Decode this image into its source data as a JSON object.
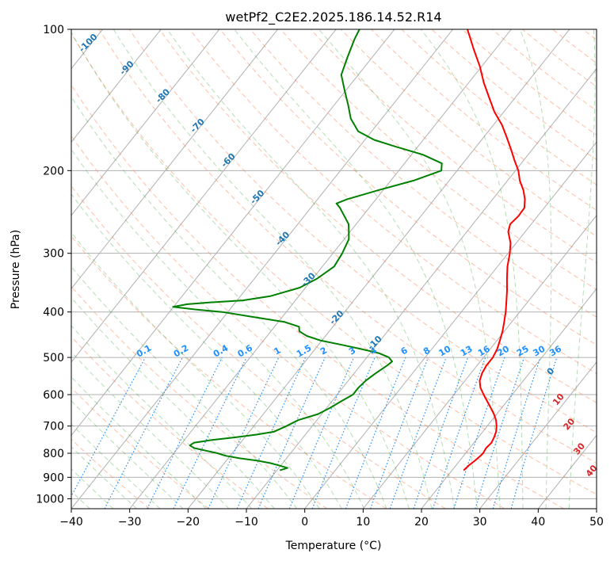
{
  "chart_data": {
    "type": "skew-t log-p",
    "title": "wetPf2_C2E2.2025.186.14.52.R14",
    "xlabel": "Temperature (°C)",
    "ylabel": "Pressure (hPa)",
    "xlim": [
      -40,
      50
    ],
    "ylim": [
      1050,
      100
    ],
    "x_ticks": [
      "−40",
      "−30",
      "−20",
      "−10",
      "0",
      "10",
      "20",
      "30",
      "40",
      "50"
    ],
    "y_ticks": [
      "100",
      "200",
      "300",
      "400",
      "500",
      "600",
      "700",
      "800",
      "900",
      "1000"
    ],
    "y_tick_values": [
      100,
      200,
      300,
      400,
      500,
      600,
      700,
      800,
      900,
      1000
    ],
    "grid": true,
    "series": [
      {
        "color": "#ff0000",
        "points": [
          [
            870,
            22.0
          ],
          [
            850,
            22.2
          ],
          [
            830,
            22.6
          ],
          [
            810,
            22.9
          ],
          [
            800,
            23.0
          ],
          [
            780,
            22.8
          ],
          [
            760,
            23.0
          ],
          [
            740,
            22.7
          ],
          [
            720,
            22.3
          ],
          [
            700,
            21.6
          ],
          [
            680,
            20.7
          ],
          [
            660,
            19.5
          ],
          [
            640,
            18.1
          ],
          [
            620,
            16.6
          ],
          [
            600,
            15.1
          ],
          [
            580,
            13.6
          ],
          [
            560,
            12.5
          ],
          [
            540,
            11.9
          ],
          [
            520,
            11.6
          ],
          [
            500,
            11.6
          ],
          [
            480,
            11.2
          ],
          [
            460,
            10.5
          ],
          [
            440,
            9.7
          ],
          [
            420,
            8.7
          ],
          [
            400,
            7.6
          ],
          [
            380,
            6.3
          ],
          [
            360,
            4.9
          ],
          [
            340,
            3.3
          ],
          [
            320,
            1.7
          ],
          [
            300,
            0.3
          ],
          [
            285,
            -1.0
          ],
          [
            270,
            -2.9
          ],
          [
            260,
            -3.6
          ],
          [
            250,
            -3.3
          ],
          [
            240,
            -3.4
          ],
          [
            230,
            -4.5
          ],
          [
            220,
            -6.0
          ],
          [
            210,
            -7.9
          ],
          [
            200,
            -9.5
          ],
          [
            190,
            -11.6
          ],
          [
            180,
            -13.7
          ],
          [
            170,
            -16.0
          ],
          [
            160,
            -18.5
          ],
          [
            150,
            -21.6
          ],
          [
            140,
            -24.4
          ],
          [
            130,
            -27.4
          ],
          [
            120,
            -30.3
          ],
          [
            110,
            -33.8
          ],
          [
            100,
            -37.5
          ]
        ]
      },
      {
        "color": "#008000",
        "points": [
          [
            870,
            -9.5
          ],
          [
            860,
            -8.5
          ],
          [
            850,
            -10.2
          ],
          [
            840,
            -12.0
          ],
          [
            830,
            -14.5
          ],
          [
            820,
            -18.0
          ],
          [
            810,
            -20.8
          ],
          [
            800,
            -22.5
          ],
          [
            790,
            -24.8
          ],
          [
            780,
            -27.2
          ],
          [
            770,
            -28.3
          ],
          [
            760,
            -28.0
          ],
          [
            750,
            -25.4
          ],
          [
            740,
            -21.7
          ],
          [
            730,
            -18.4
          ],
          [
            720,
            -15.8
          ],
          [
            700,
            -14.4
          ],
          [
            680,
            -13.2
          ],
          [
            660,
            -10.6
          ],
          [
            640,
            -9.4
          ],
          [
            620,
            -8.4
          ],
          [
            600,
            -7.3
          ],
          [
            580,
            -7.3
          ],
          [
            560,
            -7.0
          ],
          [
            540,
            -6.3
          ],
          [
            520,
            -5.4
          ],
          [
            510,
            -5.1
          ],
          [
            500,
            -6.2
          ],
          [
            490,
            -8.4
          ],
          [
            480,
            -12.0
          ],
          [
            470,
            -16.0
          ],
          [
            460,
            -20.3
          ],
          [
            450,
            -23.2
          ],
          [
            440,
            -25.1
          ],
          [
            430,
            -25.8
          ],
          [
            420,
            -29.0
          ],
          [
            410,
            -35.0
          ],
          [
            400,
            -41.0
          ],
          [
            395,
            -46.0
          ],
          [
            390,
            -50.1
          ],
          [
            385,
            -48.0
          ],
          [
            382,
            -44.5
          ],
          [
            378,
            -39.0
          ],
          [
            370,
            -34.8
          ],
          [
            355,
            -31.0
          ],
          [
            340,
            -29.3
          ],
          [
            320,
            -28.0
          ],
          [
            300,
            -28.4
          ],
          [
            280,
            -29.2
          ],
          [
            270,
            -30.2
          ],
          [
            260,
            -31.3
          ],
          [
            250,
            -33.1
          ],
          [
            240,
            -35.0
          ],
          [
            235,
            -36.2
          ],
          [
            230,
            -34.9
          ],
          [
            220,
            -30.8
          ],
          [
            210,
            -26.1
          ],
          [
            200,
            -22.7
          ],
          [
            193,
            -23.6
          ],
          [
            185,
            -28.0
          ],
          [
            178,
            -33.6
          ],
          [
            172,
            -38.4
          ],
          [
            165,
            -42.3
          ],
          [
            155,
            -45.3
          ],
          [
            145,
            -47.6
          ],
          [
            135,
            -50.2
          ],
          [
            125,
            -52.9
          ],
          [
            115,
            -54.2
          ],
          [
            105,
            -55.5
          ],
          [
            100,
            -56.0
          ]
        ]
      }
    ],
    "mixing_ratio_labels": [
      "0.1",
      "0.2",
      "0.4",
      "0.6",
      "1",
      "1.5",
      "2",
      "3",
      "4",
      "6",
      "8",
      "10",
      "13",
      "16",
      "20",
      "25",
      "30",
      "36"
    ],
    "mixing_ratio_values": [
      0.1,
      0.2,
      0.4,
      0.6,
      1,
      1.5,
      2,
      3,
      4,
      6,
      8,
      10,
      13,
      16,
      20,
      25,
      30,
      36
    ],
    "dry_adiabat_labels": [
      "-100",
      "-90",
      "-80",
      "-70",
      "-60",
      "-50",
      "-40",
      "-30",
      "-20",
      "-10"
    ],
    "moist_adiabat_labels": [
      "0",
      "10",
      "20",
      "30",
      "40"
    ]
  },
  "colors": {
    "temperature": "#ff0000",
    "dewpoint": "#008000",
    "dry_adiabat": "#ff7f50",
    "moist_adiabat": "#2ca02c",
    "mixing_ratio": "#1e90ff",
    "isotherm": "#000000",
    "dry_label": "#1f77b4",
    "moist_label": "#d62728"
  }
}
